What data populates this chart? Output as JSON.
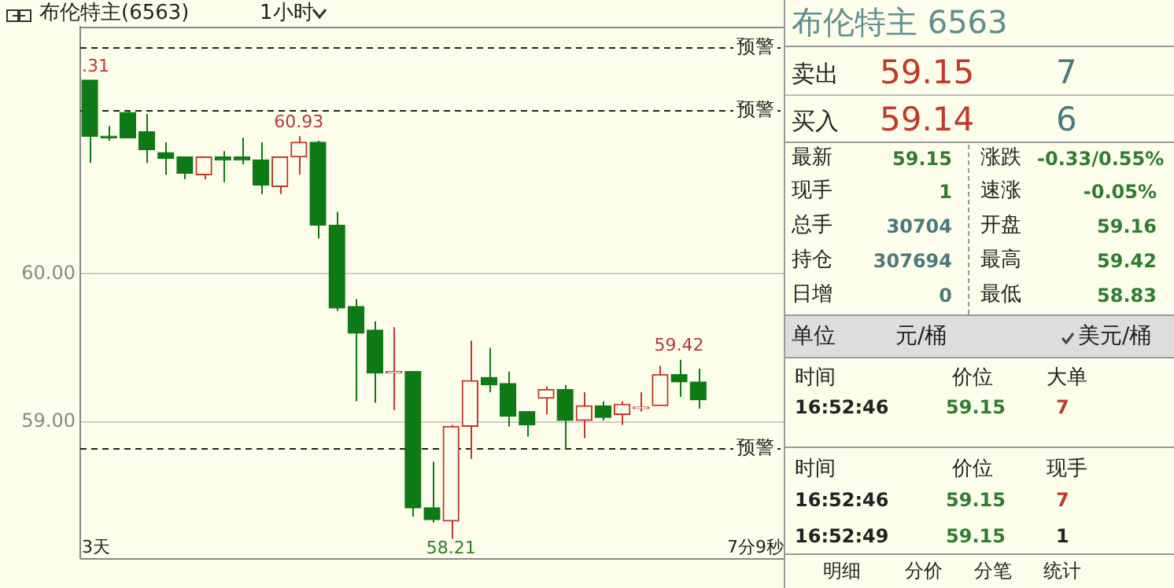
{
  "chart_data": {
    "type": "candlestick",
    "title": "布伦特主(6563)",
    "subtitle": "1小时",
    "categories": [
      null,
      null,
      null,
      null,
      null,
      null,
      null,
      null,
      null,
      null,
      null,
      null,
      null,
      null,
      null,
      null,
      null,
      null,
      null,
      null,
      null,
      null,
      null,
      null,
      null,
      null,
      null,
      null,
      null,
      null,
      null,
      null,
      null
    ],
    "ohlc": [
      [
        61.31,
        61.31,
        60.75,
        60.93
      ],
      [
        60.93,
        61.0,
        60.9,
        60.92
      ],
      [
        61.09,
        61.1,
        60.92,
        60.92
      ],
      [
        60.96,
        61.08,
        60.75,
        60.84
      ],
      [
        60.82,
        60.89,
        60.67,
        60.78
      ],
      [
        60.79,
        60.79,
        60.64,
        60.68
      ],
      [
        60.67,
        60.79,
        60.64,
        60.79
      ],
      [
        60.79,
        60.83,
        60.62,
        60.77
      ],
      [
        60.79,
        60.92,
        60.74,
        60.77
      ],
      [
        60.77,
        60.89,
        60.54,
        60.6
      ],
      [
        60.59,
        60.79,
        60.54,
        60.79
      ],
      [
        60.79,
        60.93,
        60.67,
        60.89
      ],
      [
        60.89,
        60.9,
        60.24,
        60.33
      ],
      [
        60.33,
        60.42,
        59.75,
        59.77
      ],
      [
        59.78,
        59.83,
        59.14,
        59.6
      ],
      [
        59.62,
        59.68,
        59.13,
        59.33
      ],
      [
        59.33,
        59.64,
        59.08,
        59.34
      ],
      [
        59.34,
        59.34,
        58.36,
        58.42
      ],
      [
        58.42,
        58.73,
        58.32,
        58.34
      ],
      [
        58.33,
        58.98,
        58.21,
        58.97
      ],
      [
        58.97,
        59.55,
        58.75,
        59.28
      ],
      [
        59.3,
        59.5,
        59.2,
        59.25
      ],
      [
        59.26,
        59.34,
        58.97,
        59.04
      ],
      [
        59.07,
        59.07,
        58.9,
        58.98
      ],
      [
        59.16,
        59.24,
        59.05,
        59.22
      ],
      [
        59.22,
        59.25,
        58.82,
        59.01
      ],
      [
        59.01,
        59.2,
        58.89,
        59.11
      ],
      [
        59.11,
        59.14,
        59.01,
        59.03
      ],
      [
        59.05,
        59.14,
        58.98,
        59.12
      ],
      [
        59.09,
        59.2,
        59.07,
        59.1
      ],
      [
        59.11,
        59.38,
        59.11,
        59.32
      ],
      [
        59.32,
        59.42,
        59.17,
        59.27
      ],
      [
        59.27,
        59.36,
        59.09,
        59.15
      ]
    ],
    "colors": [
      "#0e7a16",
      "#0e7a16",
      "#0e7a16",
      "#0e7a16",
      "#0e7a16",
      "#0e7a16",
      "#c0392b",
      "#0e7a16",
      "#0e7a16",
      "#0e7a16",
      "#c0392b",
      "#c0392b",
      "#0e7a16",
      "#0e7a16",
      "#0e7a16",
      "#0e7a16",
      "#c0392b",
      "#0e7a16",
      "#0e7a16",
      "#c0392b",
      "#c0392b",
      "#0e7a16",
      "#0e7a16",
      "#0e7a16",
      "#c0392b",
      "#0e7a16",
      "#c0392b",
      "#0e7a16",
      "#c0392b",
      "#c0392b",
      "#c0392b",
      "#0e7a16",
      "#0e7a16"
    ],
    "ylim": [
      58.08,
      61.67
    ],
    "yticks": [
      {
        "value": 60,
        "label": "60.00"
      },
      {
        "value": 59,
        "label": "59.00"
      }
    ],
    "grid": "y",
    "ref_lines": [
      {
        "axis": "y",
        "value": 61.53,
        "label": "预警",
        "line_style": "dashed"
      },
      {
        "axis": "y",
        "value": 61.11,
        "label": "预警",
        "line_style": "dashed"
      },
      {
        "axis": "y",
        "value": 58.82,
        "label": "预警",
        "line_style": "dashed"
      }
    ],
    "annotations": [
      {
        "text": ".31",
        "y": 61.31
      },
      {
        "text": "60.93",
        "y": 60.93
      },
      {
        "text": "58.21",
        "y": 58.21
      },
      {
        "text": "59.42",
        "y": 59.42
      },
      "3天",
      "7分9秒",
      "布伦特主 6563",
      "卖出",
      "59.15",
      "7",
      "买入",
      "59.14",
      "6",
      "最新",
      "59.15",
      "涨跌",
      "-0.33/0.55%",
      "现手",
      "1",
      "速涨",
      "-0.05%",
      "总手",
      "30704",
      "开盘",
      "59.16",
      "持仓",
      "307694",
      "最高",
      "59.42",
      "日增",
      "0",
      "最低",
      "58.83",
      "单位",
      "元/桶",
      "美元/桶",
      "时间",
      "价位",
      "大单",
      "16:52:46",
      "59.15",
      "7",
      "时间",
      "价位",
      "现手",
      "16:52:46",
      "59.15",
      "7",
      "16:52:49",
      "59.15",
      "1",
      "明细",
      "分价",
      "分笔",
      "统计"
    ]
  }
}
